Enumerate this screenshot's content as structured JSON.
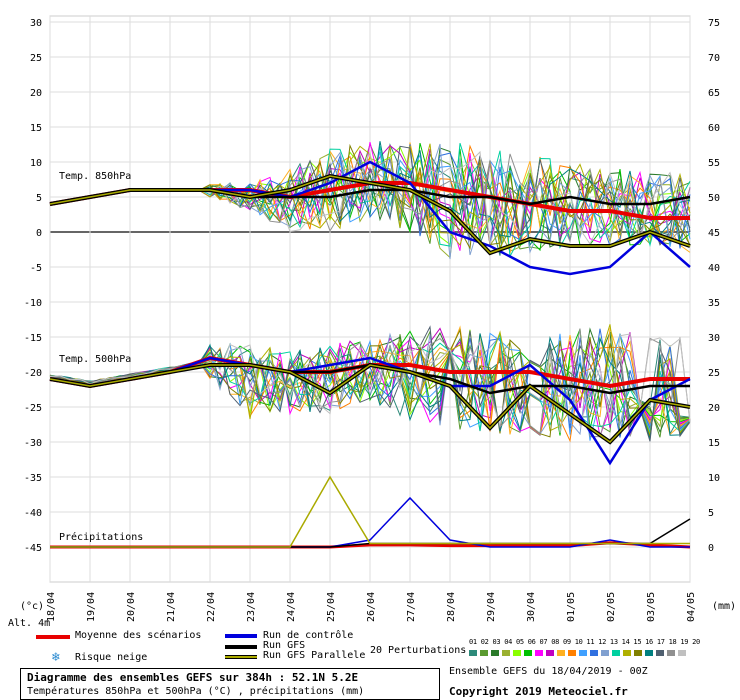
{
  "chart_data": {
    "type": "line",
    "left_axis_ticks": [
      "30",
      "25",
      "20",
      "15",
      "10",
      "5",
      "0",
      "-5",
      "-10",
      "-15",
      "-20",
      "-25",
      "-30",
      "-35",
      "-40",
      "-45"
    ],
    "right_axis_ticks": [
      "75",
      "70",
      "65",
      "60",
      "55",
      "50",
      "45",
      "40",
      "35",
      "30",
      "25",
      "20",
      "15",
      "10",
      "5",
      "0"
    ],
    "left_axis_range": [
      -50,
      30
    ],
    "right_axis_range": [
      -5,
      75
    ],
    "left_unit": "(°c)",
    "right_unit": "(mm)",
    "altitude": "Alt. 4m",
    "x_labels": [
      "18/04",
      "19/04",
      "20/04",
      "21/04",
      "22/04",
      "23/04",
      "24/04",
      "25/04",
      "26/04",
      "27/04",
      "28/04",
      "29/04",
      "30/04",
      "01/05",
      "02/05",
      "03/05",
      "04/05"
    ],
    "panel_labels": {
      "t850": "Temp. 850hPa",
      "t500": "Temp. 500hPa",
      "precip": "Précipitations"
    },
    "series": [
      {
        "name": "Moyenne des scénarios",
        "color": "#e80000",
        "t850": [
          4,
          5,
          6,
          6,
          6,
          6,
          5,
          6,
          7,
          7,
          6,
          5,
          4,
          3,
          3,
          2,
          2
        ],
        "t500": [
          -21,
          -22,
          -21,
          -20,
          -18,
          -19,
          -20,
          -20,
          -19,
          -19,
          -20,
          -20,
          -20,
          -21,
          -22,
          -21,
          -21
        ],
        "precip": [
          0,
          0,
          0,
          0,
          0,
          0,
          0,
          0,
          0.3,
          0.3,
          0.2,
          0.2,
          0.3,
          0.2,
          0.6,
          0.3,
          0
        ]
      },
      {
        "name": "Run de contrôle",
        "color": "#0000dd",
        "t850": [
          4,
          5,
          6,
          6,
          6,
          6,
          5,
          7,
          10,
          7,
          0,
          -2,
          -5,
          -6,
          -5,
          0,
          -5
        ],
        "t500": [
          -21,
          -22,
          -21,
          -20,
          -18,
          -19,
          -20,
          -19,
          -18,
          -20,
          -22,
          -22,
          -19,
          -24,
          -33,
          -24,
          -21
        ],
        "precip": [
          0,
          0,
          0,
          0,
          0,
          0,
          0,
          0,
          1,
          7,
          1,
          0,
          0,
          0,
          1,
          0,
          0
        ]
      },
      {
        "name": "Run GFS",
        "color": "#000000",
        "t850": [
          4,
          5,
          6,
          6,
          6,
          5,
          5,
          5,
          6,
          6,
          5,
          5,
          4,
          5,
          4,
          4,
          5
        ],
        "t500": [
          -21,
          -22,
          -21,
          -20,
          -19,
          -19,
          -20,
          -20,
          -19,
          -20,
          -21,
          -23,
          -22,
          -22,
          -23,
          -22,
          -22
        ],
        "precip": [
          0,
          0,
          0,
          0,
          0,
          0,
          0,
          0,
          0.5,
          0.5,
          0.5,
          0.5,
          0.5,
          0.5,
          0.5,
          0.5,
          4
        ]
      },
      {
        "name": "Run GFS Parallele",
        "color": "#aaaa00",
        "t850": [
          4,
          5,
          6,
          6,
          6,
          5,
          6,
          8,
          7,
          6,
          3,
          -3,
          -1,
          -2,
          -2,
          0,
          -2
        ],
        "t500": [
          -21,
          -22,
          -21,
          -20,
          -19,
          -19,
          -20,
          -23,
          -19,
          -20,
          -22,
          -28,
          -22,
          -26,
          -30,
          -24,
          -25
        ],
        "precip": [
          0,
          0,
          0,
          0,
          0,
          0,
          0,
          10,
          0.5,
          0.5,
          0.5,
          0.5,
          0.5,
          0.5,
          0.5,
          0.5,
          0.5
        ]
      }
    ],
    "perturbation_colors": [
      "#2d8a7a",
      "#5a9a30",
      "#2a7a2a",
      "#9ab030",
      "#8aff00",
      "#00c000",
      "#ff00ff",
      "#c000c0",
      "#ffb020",
      "#ff8000",
      "#40a0ff",
      "#3070e0",
      "#80a0d0",
      "#00d0a0",
      "#b0b000",
      "#808000",
      "#008080",
      "#506070",
      "#909090",
      "#c0c0c0"
    ],
    "perturbation_spread": {
      "t850_max": [
        5,
        6,
        7,
        7,
        7,
        7,
        9,
        12,
        13,
        13,
        13,
        12,
        11,
        10,
        9,
        9,
        8
      ],
      "t850_min": [
        3,
        4,
        5,
        5,
        5,
        3,
        0,
        0,
        2,
        0,
        -4,
        -4,
        -3,
        -2,
        -2,
        -2,
        -3
      ],
      "t500_max": [
        -19,
        -20,
        -19,
        -18,
        -16,
        -16,
        -17,
        -16,
        -15,
        -14,
        -13,
        -14,
        -15,
        -14,
        -13,
        -15,
        -15
      ],
      "t500_min": [
        -22,
        -23,
        -22,
        -21,
        -21,
        -27,
        -26,
        -26,
        -24,
        -27,
        -28,
        -29,
        -29,
        -30,
        -30,
        -30,
        -29
      ]
    }
  },
  "legend": {
    "mean": "Moyenne des scénarios",
    "snow": "Risque neige",
    "control": "Run de contrôle",
    "gfs": "Run GFS",
    "gfs_par": "Run GFS Parallele",
    "perturbations": "20 Perturbations",
    "pert_numbers": "01 02 03 04 05 06 07 08 09 10 11 12 13 14 15 16 17 18 19 20",
    "mean_color": "#e80000",
    "control_color": "#0000dd",
    "gfs_color": "#000000",
    "gfs_par_color": "#aaaa00",
    "snow_icon": "snowflake-icon"
  },
  "footer": {
    "title": "Diagramme des ensembles GEFS sur 384h : 52.1N 5.2E",
    "subtitle": "Températures 850hPa et 500hPa (°C) , précipitations (mm)",
    "ensemble": "Ensemble GEFS du 18/04/2019 - 00Z",
    "copyright": "Copyright 2019 Meteociel.fr"
  }
}
